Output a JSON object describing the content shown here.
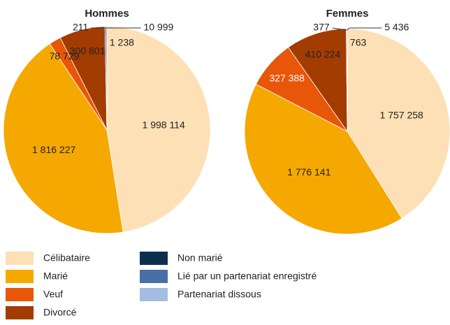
{
  "chart_data": [
    {
      "type": "pie",
      "title": "Hommes",
      "categories": [
        "Célibataire",
        "Marié",
        "Veuf",
        "Divorcé",
        "Non marié",
        "Lié par un partenariat enregistré",
        "Partenariat dissous"
      ],
      "values": [
        1998114,
        1816227,
        78729,
        300801,
        211,
        10999,
        1238
      ],
      "value_labels": [
        "1 998 114",
        "1 816 227",
        "78 729",
        "300 801",
        "211",
        "10 999",
        "1 238"
      ],
      "colors": [
        "#fde0b5",
        "#f5a800",
        "#e8560a",
        "#a33c00",
        "#0d2f4f",
        "#4a6fa5",
        "#a3bde0"
      ]
    },
    {
      "type": "pie",
      "title": "Femmes",
      "categories": [
        "Célibataire",
        "Marié",
        "Veuf",
        "Divorcé",
        "Non marié",
        "Lié par un partenariat enregistré",
        "Partenariat dissous"
      ],
      "values": [
        1757258,
        1776141,
        327388,
        410224,
        377,
        5436,
        763
      ],
      "value_labels": [
        "1 757 258",
        "1 776 141",
        "327 388",
        "410 224",
        "377",
        "5 436",
        "763"
      ],
      "colors": [
        "#fde0b5",
        "#f5a800",
        "#e8560a",
        "#a33c00",
        "#0d2f4f",
        "#4a6fa5",
        "#a3bde0"
      ]
    }
  ]
}
